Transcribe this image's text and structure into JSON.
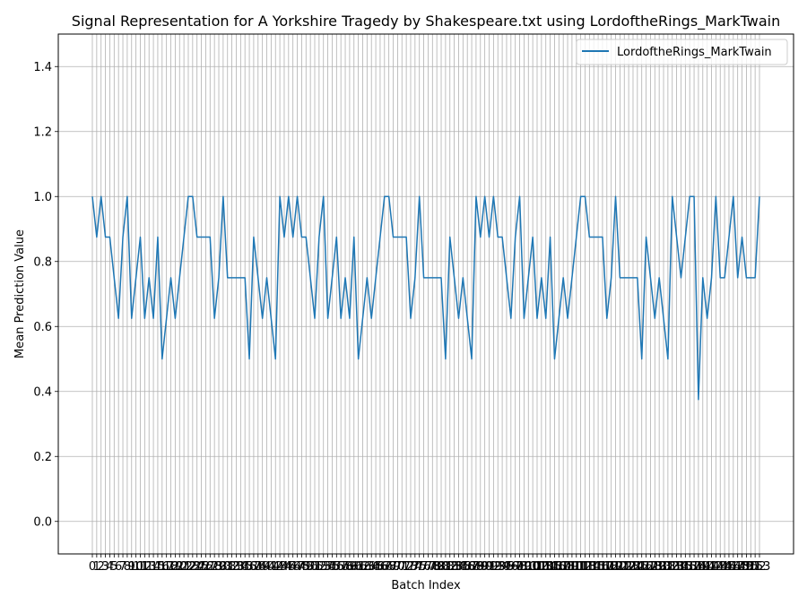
{
  "chart_data": {
    "type": "line",
    "title": "Signal Representation for A Yorkshire Tragedy by Shakespeare.txt using LordoftheRings_MarkTwain",
    "xlabel": "Batch Index",
    "ylabel": "Mean Prediction Value",
    "ylim": [
      -0.1,
      1.5
    ],
    "yticks": [
      0.0,
      0.2,
      0.4,
      0.6,
      0.8,
      1.0,
      1.2,
      1.4
    ],
    "grid": true,
    "legend_position": "top-right",
    "x": [
      0,
      1,
      2,
      3,
      4,
      5,
      6,
      7,
      8,
      9,
      10,
      11,
      12,
      13,
      14,
      15,
      16,
      17,
      18,
      19,
      20,
      21,
      22,
      23,
      24,
      25,
      26,
      27,
      28,
      29,
      30,
      31,
      32,
      33,
      34,
      35,
      36,
      37,
      38,
      39,
      40,
      41,
      42,
      43,
      44,
      45,
      46,
      47,
      48,
      49,
      50,
      51,
      52,
      53,
      54,
      55,
      56,
      57,
      58,
      59,
      60,
      61,
      62,
      63,
      64,
      65,
      66,
      67,
      68,
      69,
      70,
      71,
      72,
      73,
      74,
      75,
      76,
      77,
      78,
      79,
      80,
      81,
      82,
      83,
      84,
      85,
      86,
      87,
      88,
      89,
      90,
      91,
      92,
      93,
      94,
      95,
      96,
      97,
      98,
      99,
      100,
      101,
      102,
      103,
      104,
      105,
      106,
      107,
      108,
      109,
      110,
      111,
      112,
      113,
      114,
      115,
      116,
      117,
      118,
      119,
      120,
      121,
      122,
      123,
      124,
      125,
      126,
      127,
      128,
      129,
      130,
      131,
      132,
      133,
      134,
      135,
      136,
      137,
      138,
      139,
      140,
      141,
      142,
      143,
      144,
      145,
      146,
      147,
      148,
      149,
      150,
      151,
      152,
      153
    ],
    "series": [
      {
        "name": "LordoftheRings_MarkTwain",
        "color": "#1f77b4",
        "values": [
          1.0,
          0.875,
          1.0,
          0.875,
          0.875,
          0.75,
          0.625,
          0.875,
          1.0,
          0.625,
          0.75,
          0.875,
          0.625,
          0.75,
          0.625,
          0.875,
          0.5,
          0.625,
          0.75,
          0.625,
          0.75,
          0.875,
          1.0,
          1.0,
          0.875,
          0.875,
          0.875,
          0.875,
          0.625,
          0.75,
          1.0,
          0.75,
          0.75,
          0.75,
          0.75,
          0.75,
          0.5,
          0.875,
          0.75,
          0.625,
          0.75,
          0.625,
          0.5,
          1.0,
          0.875,
          1.0,
          0.875,
          1.0,
          0.875,
          0.875,
          0.75,
          0.625,
          0.875,
          1.0,
          0.625,
          0.75,
          0.875,
          0.625,
          0.75,
          0.625,
          0.875,
          0.5,
          0.625,
          0.75,
          0.625,
          0.75,
          0.875,
          1.0,
          1.0,
          0.875,
          0.875,
          0.875,
          0.875,
          0.625,
          0.75,
          1.0,
          0.75,
          0.75,
          0.75,
          0.75,
          0.75,
          0.5,
          0.875,
          0.75,
          0.625,
          0.75,
          0.625,
          0.5,
          1.0,
          0.875,
          1.0,
          0.875,
          1.0,
          0.875,
          0.875,
          0.75,
          0.625,
          0.875,
          1.0,
          0.625,
          0.75,
          0.875,
          0.625,
          0.75,
          0.625,
          0.875,
          0.5,
          0.625,
          0.75,
          0.625,
          0.75,
          0.875,
          1.0,
          1.0,
          0.875,
          0.875,
          0.875,
          0.875,
          0.625,
          0.75,
          1.0,
          0.75,
          0.75,
          0.75,
          0.75,
          0.75,
          0.5,
          0.875,
          0.75,
          0.625,
          0.75,
          0.625,
          0.5,
          1.0,
          0.875,
          0.75,
          0.875,
          1.0,
          1.0,
          0.375,
          0.75,
          0.625,
          0.75,
          1.0,
          0.75,
          0.75,
          0.875,
          1.0,
          0.75,
          0.875,
          0.75,
          0.75,
          0.75,
          1.0
        ]
      }
    ]
  }
}
